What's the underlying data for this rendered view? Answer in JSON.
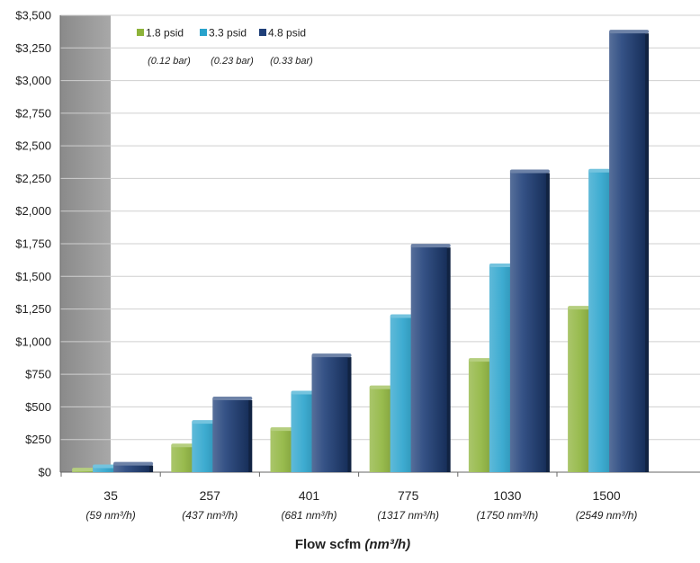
{
  "chart_data": {
    "type": "bar",
    "categories": [
      "35",
      "257",
      "401",
      "775",
      "1030",
      "1500"
    ],
    "category_sublabels": [
      "(59 nm³/h)",
      "(437 nm³/h)",
      "(681 nm³/h)",
      "(1317 nm³/h)",
      "(1750 nm³/h)",
      "(2549 nm³/h)"
    ],
    "series": [
      {
        "name": "1.8 psid",
        "sublabel": "(0.12 bar)",
        "color": "#8db33a",
        "values": [
          20,
          205,
          330,
          650,
          860,
          1260
        ]
      },
      {
        "name": "3.3 psid",
        "sublabel": "(0.23 bar)",
        "color": "#29a3cc",
        "values": [
          45,
          385,
          610,
          1195,
          1585,
          2310
        ]
      },
      {
        "name": "4.8 psid",
        "sublabel": "(0.33 bar)",
        "color": "#1f3f78",
        "values": [
          65,
          565,
          895,
          1735,
          2305,
          3375
        ]
      }
    ],
    "xlabel_main": "Flow scfm",
    "xlabel_unit": "(nm³/h)",
    "ylim": [
      0,
      3500
    ],
    "yticks": [
      0,
      250,
      500,
      750,
      1000,
      1250,
      1500,
      1750,
      2000,
      2250,
      2500,
      2750,
      3000,
      3250,
      3500
    ],
    "ytick_labels": [
      "$0",
      "$250",
      "$500",
      "$750",
      "$1,000",
      "$1,250",
      "$1,500",
      "$1,750",
      "$2,000",
      "$2,250",
      "$2,500",
      "$2,750",
      "$3,000",
      "$3,250",
      "$3,500"
    ],
    "grid": true,
    "legend_position": "top-left"
  }
}
